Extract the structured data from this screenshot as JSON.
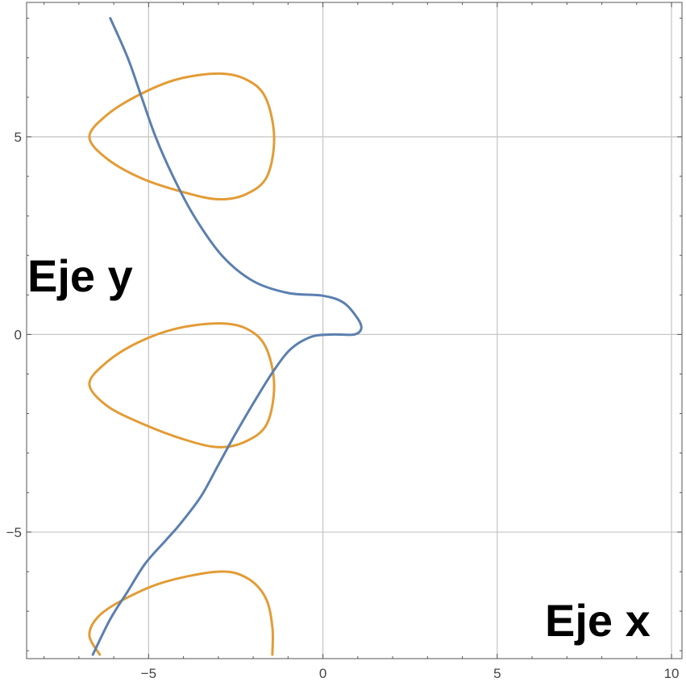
{
  "chart_data": {
    "type": "line",
    "title": "",
    "xlabel": "Eje x",
    "ylabel": "Eje y",
    "xlim": [
      -8.5,
      10.3
    ],
    "ylim": [
      -8.2,
      8.4
    ],
    "grid": true,
    "x_ticks": [
      -5,
      0,
      5,
      10
    ],
    "y_ticks": [
      -5,
      0,
      5
    ],
    "x_tick_labels": [
      "−5",
      "0",
      "5",
      "10"
    ],
    "y_tick_labels": [
      "−5",
      "0",
      "5"
    ],
    "colors": {
      "blue": "#5b7fb0",
      "orange": "#e29c36",
      "grid": "#c8c8c8",
      "frame": "#555555"
    },
    "series": [
      {
        "color": "blue",
        "points": [
          [
            -6.1,
            8.0
          ],
          [
            -5.6,
            7.0
          ],
          [
            -5.2,
            6.0
          ],
          [
            -4.8,
            5.0
          ],
          [
            -4.3,
            4.0
          ],
          [
            -3.7,
            3.0
          ],
          [
            -2.9,
            2.0
          ],
          [
            -2.0,
            1.35
          ],
          [
            -1.0,
            1.05
          ],
          [
            0.0,
            0.98
          ],
          [
            0.6,
            0.8
          ],
          [
            1.0,
            0.4
          ],
          [
            1.1,
            0.15
          ],
          [
            0.9,
            0.0
          ],
          [
            0.3,
            0.0
          ],
          [
            -0.3,
            -0.05
          ],
          [
            -0.9,
            -0.35
          ],
          [
            -1.4,
            -0.9
          ],
          [
            -1.9,
            -1.6
          ],
          [
            -2.5,
            -2.5
          ],
          [
            -3.0,
            -3.3
          ],
          [
            -3.5,
            -4.1
          ],
          [
            -4.1,
            -4.8
          ],
          [
            -4.5,
            -5.2
          ],
          [
            -5.1,
            -5.8
          ],
          [
            -5.6,
            -6.5
          ],
          [
            -6.1,
            -7.2
          ],
          [
            -6.6,
            -8.1
          ]
        ]
      },
      {
        "color": "orange",
        "closed": true,
        "points": [
          [
            -6.7,
            5.0
          ],
          [
            -6.2,
            5.55
          ],
          [
            -5.3,
            6.05
          ],
          [
            -4.2,
            6.45
          ],
          [
            -3.0,
            6.6
          ],
          [
            -2.2,
            6.45
          ],
          [
            -1.65,
            6.0
          ],
          [
            -1.4,
            5.0
          ],
          [
            -1.6,
            4.0
          ],
          [
            -2.2,
            3.55
          ],
          [
            -3.0,
            3.42
          ],
          [
            -4.0,
            3.6
          ],
          [
            -5.2,
            3.95
          ],
          [
            -6.2,
            4.45
          ]
        ]
      },
      {
        "color": "orange",
        "closed": true,
        "points": [
          [
            -6.7,
            -1.25
          ],
          [
            -6.2,
            -0.7
          ],
          [
            -5.3,
            -0.2
          ],
          [
            -4.2,
            0.15
          ],
          [
            -3.0,
            0.28
          ],
          [
            -2.2,
            0.15
          ],
          [
            -1.65,
            -0.3
          ],
          [
            -1.4,
            -1.25
          ],
          [
            -1.6,
            -2.25
          ],
          [
            -2.2,
            -2.7
          ],
          [
            -3.0,
            -2.85
          ],
          [
            -4.0,
            -2.65
          ],
          [
            -5.2,
            -2.25
          ],
          [
            -6.2,
            -1.8
          ]
        ]
      },
      {
        "color": "orange",
        "closed": false,
        "points": [
          [
            -6.4,
            -8.1
          ],
          [
            -6.7,
            -7.6
          ],
          [
            -6.4,
            -7.1
          ],
          [
            -5.6,
            -6.65
          ],
          [
            -4.5,
            -6.25
          ],
          [
            -3.0,
            -6.0
          ],
          [
            -2.2,
            -6.15
          ],
          [
            -1.65,
            -6.65
          ],
          [
            -1.45,
            -7.4
          ],
          [
            -1.45,
            -8.1
          ]
        ]
      }
    ]
  }
}
